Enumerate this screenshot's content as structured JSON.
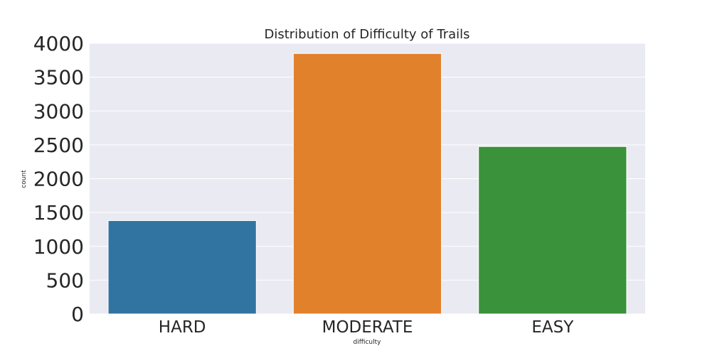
{
  "chart_data": {
    "type": "bar",
    "title": "Distribution of Difficulty of Trails",
    "xlabel": "difficulty",
    "ylabel": "count",
    "categories": [
      "HARD",
      "MODERATE",
      "EASY"
    ],
    "values": [
      1380,
      3850,
      2475
    ],
    "colors": [
      "#3274a1",
      "#e1812c",
      "#3a923a"
    ],
    "ylim": [
      0,
      4000
    ],
    "yticks": [
      0,
      500,
      1000,
      1500,
      2000,
      2500,
      3000,
      3500,
      4000
    ],
    "ytick_labels": [
      "0",
      "500",
      "1000",
      "1500",
      "2000",
      "2500",
      "3000",
      "3500",
      "4000"
    ],
    "grid": true,
    "background": "#eaeaf2"
  }
}
